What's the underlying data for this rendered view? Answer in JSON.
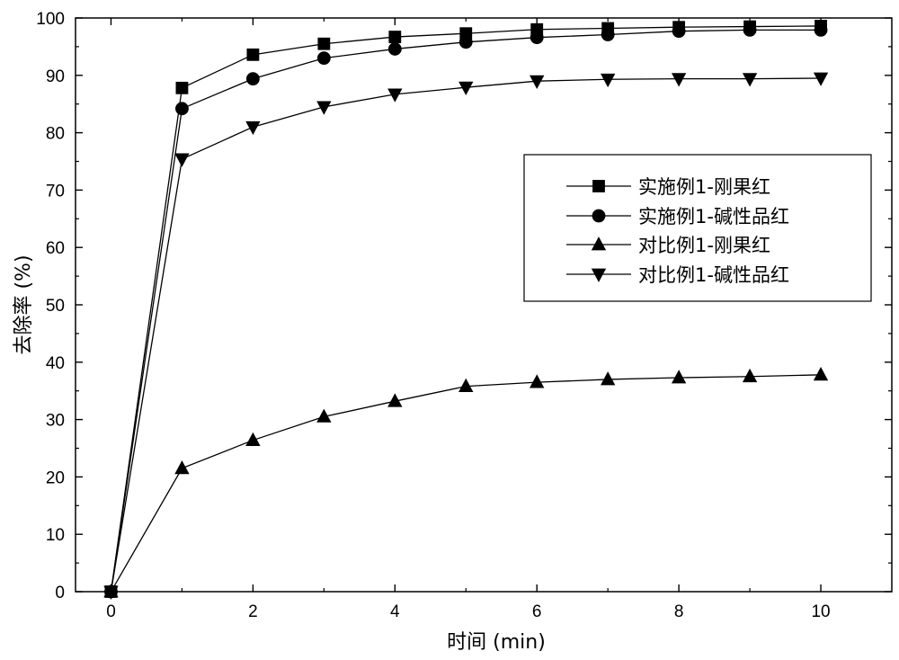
{
  "chart_data": {
    "type": "line",
    "xlabel": "时间 (min)",
    "ylabel": "去除率 (%)",
    "xlim": [
      -0.5,
      11
    ],
    "ylim": [
      0,
      100
    ],
    "x_ticks": [
      0,
      2,
      4,
      6,
      8,
      10
    ],
    "y_ticks": [
      0,
      10,
      20,
      30,
      40,
      50,
      60,
      70,
      80,
      90,
      100
    ],
    "legend_position": "right",
    "grid": false,
    "x": [
      0,
      1,
      2,
      3,
      4,
      5,
      6,
      7,
      8,
      9,
      10
    ],
    "series": [
      {
        "name": "实施例1-刚果红",
        "marker": "square",
        "values": [
          0,
          87.8,
          93.6,
          95.5,
          96.7,
          97.3,
          98.0,
          98.2,
          98.4,
          98.5,
          98.6
        ]
      },
      {
        "name": "实施例1-碱性品红",
        "marker": "circle",
        "values": [
          0,
          84.2,
          89.4,
          93.0,
          94.6,
          95.8,
          96.6,
          97.1,
          97.7,
          97.9,
          97.9
        ]
      },
      {
        "name": "对比例1-刚果红",
        "marker": "triangle-up",
        "values": [
          0,
          21.5,
          26.4,
          30.5,
          33.2,
          35.8,
          36.5,
          37.0,
          37.3,
          37.5,
          37.8
        ]
      },
      {
        "name": "对比例1-碱性品红",
        "marker": "triangle-down",
        "values": [
          0,
          75.4,
          81.0,
          84.5,
          86.7,
          87.9,
          89.0,
          89.3,
          89.4,
          89.4,
          89.5
        ]
      }
    ]
  }
}
